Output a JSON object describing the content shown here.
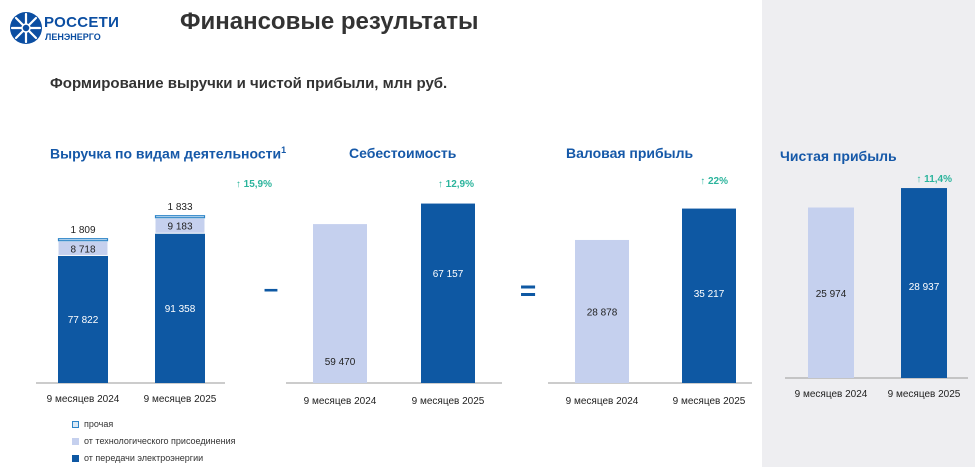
{
  "header": {
    "logo_title": "РОССЕТИ",
    "logo_subtitle": "ЛЕНЭНЕРГО",
    "page_title": "Финансовые результаты",
    "subtitle": "Формирование выручки и чистой прибыли, млн руб."
  },
  "colors": {
    "dark_bar": "#0e58a3",
    "light_bar": "#c5d0ee",
    "other_bar": "#dbeaf7",
    "other_border": "#2f86c8",
    "growth": "#2bb49c",
    "title": "#1558a8"
  },
  "operators": {
    "minus": "–",
    "equals": "="
  },
  "chart_data": [
    {
      "type": "bar",
      "stacked": true,
      "title": "Выручка по видам деятельности",
      "footnote": "1",
      "categories": [
        "9 месяцев 2024",
        "9 месяцев 2025"
      ],
      "series": [
        {
          "name": "от передачи электроэнергии",
          "values": [
            77822,
            91358
          ],
          "labels": [
            "77 822",
            "91 358"
          ]
        },
        {
          "name": "от технологического присоединения",
          "values": [
            8718,
            9183
          ],
          "labels": [
            "8 718",
            "9 183"
          ]
        },
        {
          "name": "прочая",
          "values": [
            1809,
            1833
          ],
          "labels": [
            "1 809",
            "1 833"
          ]
        }
      ],
      "growth": "↑ 15,9%",
      "legend": [
        "прочая",
        "от технологического присоединения",
        "от передачи электроэнергии"
      ]
    },
    {
      "type": "bar",
      "title": "Себестоимость",
      "categories": [
        "9 месяцев 2024",
        "9 месяцев 2025"
      ],
      "values": [
        59470,
        67157
      ],
      "labels": [
        "59 470",
        "67 157"
      ],
      "growth": "↑ 12,9%"
    },
    {
      "type": "bar",
      "title": "Валовая прибыль",
      "categories": [
        "9 месяцев 2024",
        "9 месяцев 2025"
      ],
      "values": [
        28878,
        35217
      ],
      "labels": [
        "28 878",
        "35 217"
      ],
      "growth": "↑ 22%"
    },
    {
      "type": "bar",
      "title": "Чистая прибыль",
      "categories": [
        "9 месяцев 2024",
        "9 месяцев 2025"
      ],
      "values": [
        25974,
        28937
      ],
      "labels": [
        "25 974",
        "28 937"
      ],
      "growth": "↑ 11,4%"
    }
  ]
}
